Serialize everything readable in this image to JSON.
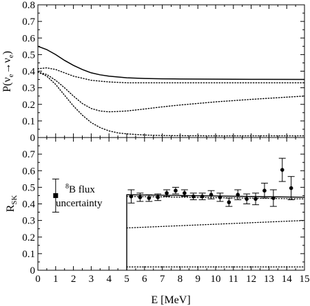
{
  "chart_data": [
    {
      "type": "line",
      "panel": "top",
      "ylabel_main": "P(ν",
      "ylabel_sub1": "e",
      "ylabel_arrow": "→ν",
      "ylabel_sub2": "e",
      "ylabel_close": ")",
      "xlim": [
        0,
        15
      ],
      "ylim": [
        0,
        0.8
      ],
      "x_ticks": [
        0,
        1,
        2,
        3,
        4,
        5,
        6,
        7,
        8,
        9,
        10,
        11,
        12,
        13,
        14,
        15
      ],
      "y_ticks": [
        "0",
        "0.1",
        "0.2",
        "0.3",
        "0.4",
        "0.5",
        "0.6",
        "0.7",
        "0.8"
      ],
      "series": [
        {
          "style": "solid",
          "x": [
            0,
            0.5,
            1,
            1.5,
            2,
            2.5,
            3,
            3.5,
            4,
            5,
            6,
            7,
            8,
            10,
            12,
            15
          ],
          "y": [
            0.55,
            0.53,
            0.5,
            0.465,
            0.435,
            0.41,
            0.39,
            0.378,
            0.37,
            0.36,
            0.356,
            0.354,
            0.353,
            0.352,
            0.351,
            0.35
          ]
        },
        {
          "style": "dotted",
          "x": [
            0,
            0.5,
            1,
            1.5,
            2,
            3,
            4,
            5,
            6,
            8,
            10,
            12,
            15
          ],
          "y": [
            0.415,
            0.42,
            0.41,
            0.39,
            0.37,
            0.345,
            0.335,
            0.33,
            0.33,
            0.33,
            0.33,
            0.33,
            0.33
          ]
        },
        {
          "style": "dotted",
          "x": [
            0,
            0.5,
            1,
            1.5,
            2,
            2.5,
            3,
            3.5,
            4,
            4.5,
            5,
            6,
            7,
            8,
            10,
            12,
            15
          ],
          "y": [
            0.395,
            0.38,
            0.345,
            0.3,
            0.25,
            0.205,
            0.175,
            0.16,
            0.155,
            0.157,
            0.16,
            0.172,
            0.185,
            0.196,
            0.215,
            0.23,
            0.25
          ]
        },
        {
          "style": "dotted",
          "x": [
            0,
            0.5,
            1,
            1.5,
            2,
            2.5,
            3,
            3.5,
            4,
            4.5,
            5,
            6,
            7,
            8,
            10,
            12,
            15
          ],
          "y": [
            0.395,
            0.37,
            0.32,
            0.255,
            0.19,
            0.135,
            0.09,
            0.06,
            0.04,
            0.028,
            0.022,
            0.015,
            0.012,
            0.011,
            0.01,
            0.01,
            0.01
          ]
        }
      ]
    },
    {
      "type": "scatter",
      "panel": "bottom",
      "ylabel_main": "R",
      "ylabel_sub": "SK",
      "xlabel": "E  [MeV]",
      "xlim": [
        0,
        15
      ],
      "ylim": [
        0,
        0.8
      ],
      "x_ticks": [
        "0",
        "1",
        "2",
        "3",
        "4",
        "5",
        "6",
        "7",
        "8",
        "9",
        "10",
        "11",
        "12",
        "13",
        "14",
        "15"
      ],
      "y_ticks": [
        "0",
        "0.1",
        "0.2",
        "0.3",
        "0.4",
        "0.5",
        "0.6",
        "0.7"
      ],
      "points": {
        "x": [
          5.25,
          5.75,
          6.25,
          6.75,
          7.25,
          7.75,
          8.25,
          8.75,
          9.25,
          9.75,
          10.25,
          10.75,
          11.25,
          11.75,
          12.25,
          12.75,
          13.25,
          13.75,
          14.25
        ],
        "y": [
          0.445,
          0.44,
          0.435,
          0.44,
          0.465,
          0.48,
          0.465,
          0.445,
          0.445,
          0.455,
          0.44,
          0.41,
          0.455,
          0.43,
          0.43,
          0.48,
          0.435,
          0.605,
          0.495
        ],
        "err": [
          0.04,
          0.025,
          0.02,
          0.02,
          0.02,
          0.02,
          0.02,
          0.02,
          0.02,
          0.025,
          0.025,
          0.025,
          0.03,
          0.03,
          0.035,
          0.045,
          0.05,
          0.07,
          0.07
        ]
      },
      "curves": [
        {
          "style": "solid",
          "x0": 5,
          "x": [
            5,
            15
          ],
          "y": [
            0.455,
            0.44
          ],
          "drop_at_x0": true
        },
        {
          "style": "dotted",
          "x": [
            5,
            15
          ],
          "y": [
            0.445,
            0.43
          ]
        },
        {
          "style": "dotted",
          "x": [
            5,
            15
          ],
          "y": [
            0.255,
            0.3
          ]
        },
        {
          "style": "dotted",
          "x": [
            5,
            15
          ],
          "y": [
            0.02,
            0.02
          ]
        }
      ],
      "flux_marker": {
        "x": 1,
        "y": 0.45,
        "err": 0.1
      },
      "flux_label_super": "8",
      "flux_label_line1": "B flux",
      "flux_label_line2": "uncertainty"
    }
  ]
}
